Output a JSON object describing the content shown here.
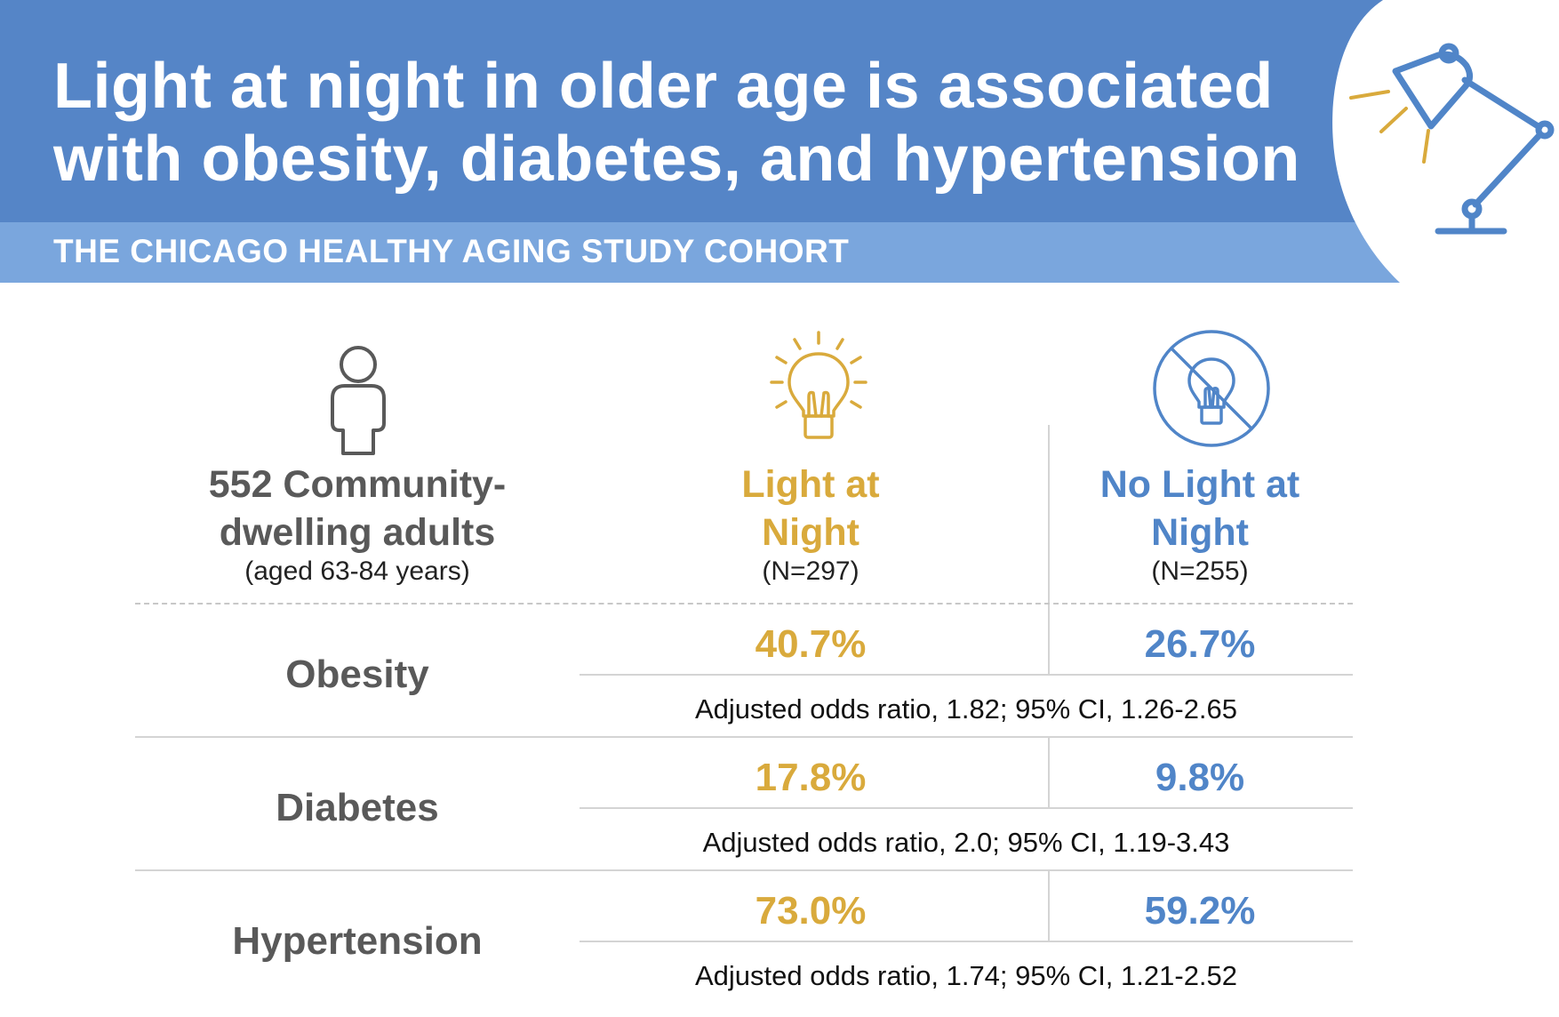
{
  "header": {
    "title_line1": "Light at night in older age is associated",
    "title_line2": "with obesity, diabetes, and hypertension",
    "subtitle": "THE CHICAGO HEALTHY AGING STUDY COHORT"
  },
  "columns": {
    "cohort": {
      "line1": "552 Community-",
      "line2": "dwelling adults",
      "sub": "(aged 63-84 years)",
      "icon": "person-icon"
    },
    "light": {
      "line1": "Light at",
      "line2": "Night",
      "sub": "(N=297)",
      "icon": "lightbulb-on-icon"
    },
    "nolight": {
      "line1": "No Light at",
      "line2": "Night",
      "sub": "(N=255)",
      "icon": "lightbulb-off-icon"
    }
  },
  "rows": [
    {
      "label": "Obesity",
      "light": "40.7%",
      "nolight": "26.7%",
      "odds": "Adjusted odds ratio, 1.82; 95% CI, 1.26-2.65"
    },
    {
      "label": "Diabetes",
      "light": "17.8%",
      "nolight": "9.8%",
      "odds": "Adjusted odds ratio, 2.0; 95% CI, 1.19-3.43"
    },
    {
      "label": "Hypertension",
      "light": "73.0%",
      "nolight": "59.2%",
      "odds": "Adjusted odds ratio, 1.74; 95% CI, 1.21-2.52"
    }
  ],
  "colors": {
    "header_blue": "#5585c7",
    "subheader_blue": "#7aa6dd",
    "light_gold": "#d9aa3c",
    "nolight_blue": "#5085c8",
    "text_gray": "#595959"
  },
  "decor": {
    "lamp_icon": "desk-lamp-icon"
  }
}
